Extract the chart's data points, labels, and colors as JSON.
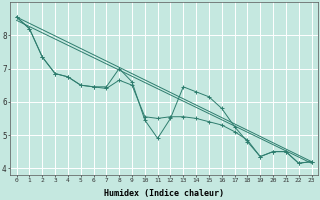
{
  "xlabel": "Humidex (Indice chaleur)",
  "background_color": "#c5e8e0",
  "grid_color": "#ffffff",
  "line_color": "#2e7d6e",
  "xlim": [
    -0.5,
    23.5
  ],
  "ylim": [
    3.8,
    9.0
  ],
  "yticks": [
    4,
    5,
    6,
    7,
    8
  ],
  "xticks": [
    0,
    1,
    2,
    3,
    4,
    5,
    6,
    7,
    8,
    9,
    10,
    11,
    12,
    13,
    14,
    15,
    16,
    17,
    18,
    19,
    20,
    21,
    22,
    23
  ],
  "line1_x": [
    0,
    1,
    2,
    3,
    4,
    5,
    6,
    7,
    8,
    9,
    10,
    11,
    12,
    13,
    14,
    15,
    16,
    17,
    18,
    19,
    20,
    21,
    22,
    23
  ],
  "line1_y": [
    8.55,
    8.2,
    7.35,
    6.85,
    6.75,
    6.5,
    6.45,
    6.45,
    7.0,
    6.6,
    5.45,
    4.9,
    5.5,
    6.45,
    6.3,
    6.15,
    5.8,
    5.25,
    4.8,
    4.35,
    4.5,
    4.5,
    4.15,
    4.2
  ],
  "line2_x": [
    0,
    1,
    2,
    3,
    4,
    5,
    6,
    7,
    8,
    9,
    10,
    11,
    12,
    13,
    14,
    15,
    16,
    17,
    18,
    19,
    20,
    21,
    22,
    23
  ],
  "line2_y": [
    8.55,
    8.2,
    7.35,
    6.85,
    6.75,
    6.5,
    6.45,
    6.4,
    6.65,
    6.5,
    5.55,
    5.5,
    5.55,
    5.55,
    5.5,
    5.4,
    5.3,
    5.1,
    4.85,
    4.35,
    4.5,
    4.5,
    4.15,
    4.2
  ],
  "trend1_x": [
    0,
    23
  ],
  "trend1_y": [
    8.55,
    4.2
  ],
  "trend2_x": [
    0,
    23
  ],
  "trend2_y": [
    8.45,
    4.15
  ]
}
